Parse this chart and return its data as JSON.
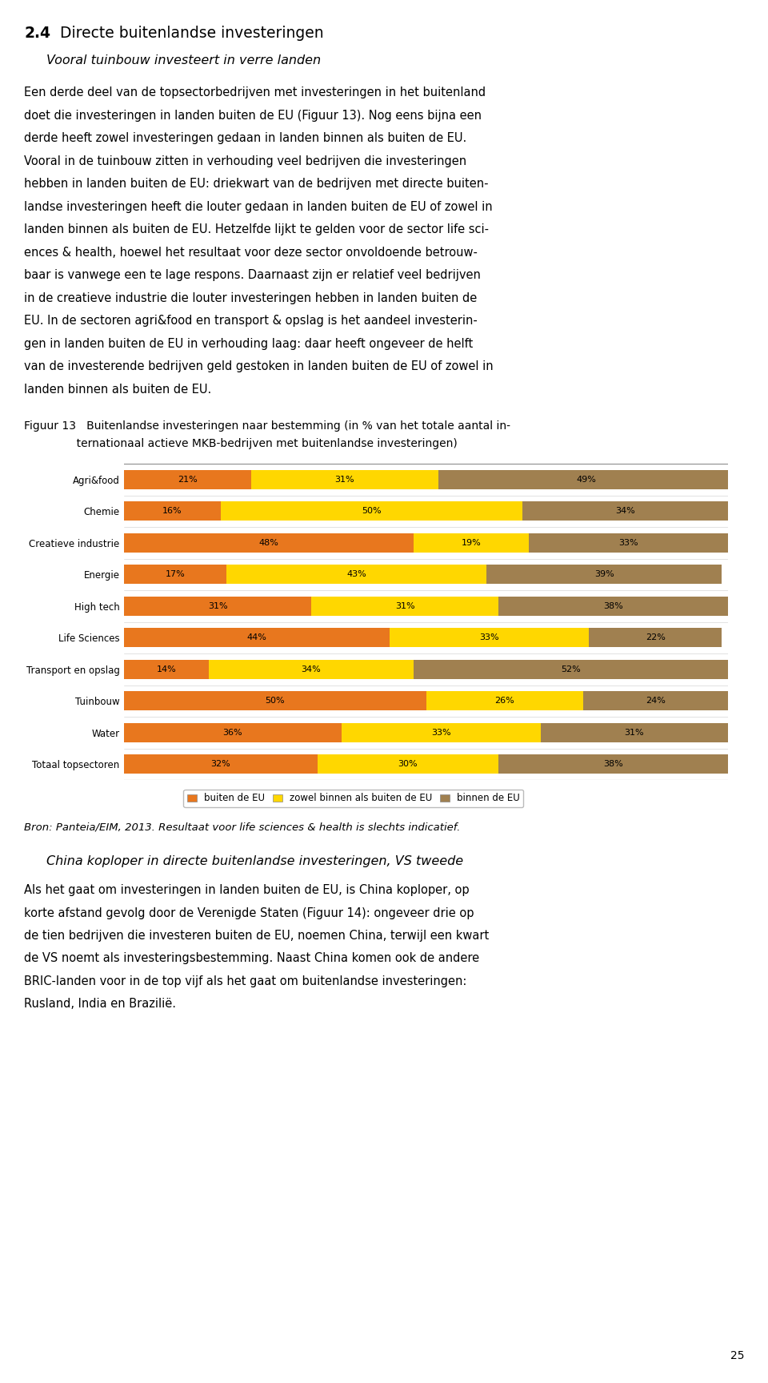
{
  "page_title_num": "2.4",
  "page_title_text": "Directe buitenlandse investeringen",
  "subtitle": "Vooral tuinbouw investeert in verre landen",
  "body_lines_1": [
    "Een derde deel van de topsectorbedrijven met investeringen in het buitenland",
    "doet die investeringen in landen buiten de EU (Figuur 13). Nog eens bijna een",
    "derde heeft zowel investeringen gedaan in landen binnen als buiten de EU.",
    "Vooral in de tuinbouw zitten in verhouding veel bedrijven die investeringen",
    "hebben in landen buiten de EU: driekwart van de bedrijven met directe buiten-",
    "landse investeringen heeft die louter gedaan in landen buiten de EU of zowel in",
    "landen binnen als buiten de EU. Hetzelfde lijkt te gelden voor de sector life sci-",
    "ences & health, hoewel het resultaat voor deze sector onvoldoende betrouw-",
    "baar is vanwege een te lage respons. Daarnaast zijn er relatief veel bedrijven",
    "in de creatieve industrie die louter investeringen hebben in landen buiten de",
    "EU. In de sectoren agri&food en transport & opslag is het aandeel investerin-",
    "gen in landen buiten de EU in verhouding laag: daar heeft ongeveer de helft",
    "van de investerende bedrijven geld gestoken in landen buiten de EU of zowel in",
    "landen binnen als buiten de EU."
  ],
  "fig_caption_line1": "Figuur 13   Buitenlandse investeringen naar bestemming (in % van het totale aantal in-",
  "fig_caption_line2": "               ternationaal actieve MKB-bedrijven met buitenlandse investeringen)",
  "bron_text": "Bron: Panteia/EIM, 2013. Resultaat voor life sciences & health is slechts indicatief.",
  "subtitle2": "China koploper in directe buitenlandse investeringen, VS tweede",
  "body_lines_2": [
    "Als het gaat om investeringen in landen buiten de EU, is China koploper, op",
    "korte afstand gevolg door de Verenigde Staten (Figuur 14): ongeveer drie op",
    "de tien bedrijven die investeren buiten de EU, noemen China, terwijl een kwart",
    "de VS noemt als investeringsbestemming. Naast China komen ook de andere",
    "BRIC-landen voor in de top vijf als het gaat om buitenlandse investeringen:",
    "Rusland, India en Brazilië."
  ],
  "page_number": "25",
  "chart": {
    "categories": [
      "Agri&food",
      "Chemie",
      "Creatieve industrie",
      "Energie",
      "High tech",
      "Life Sciences",
      "Transport en opslag",
      "Tuinbouw",
      "Water",
      "Totaal topsectoren"
    ],
    "buiten_de_EU": [
      21,
      16,
      48,
      17,
      31,
      44,
      14,
      50,
      36,
      32
    ],
    "zowel": [
      31,
      50,
      19,
      43,
      31,
      33,
      34,
      26,
      33,
      30
    ],
    "binnen_de_EU": [
      49,
      34,
      33,
      39,
      38,
      22,
      52,
      24,
      31,
      38
    ],
    "color_buiten": "#E8771E",
    "color_zowel": "#FFD700",
    "color_binnen": "#A08050",
    "legend_labels": [
      "buiten de EU",
      "zowel binnen als buiten de EU",
      "binnen de EU"
    ]
  }
}
